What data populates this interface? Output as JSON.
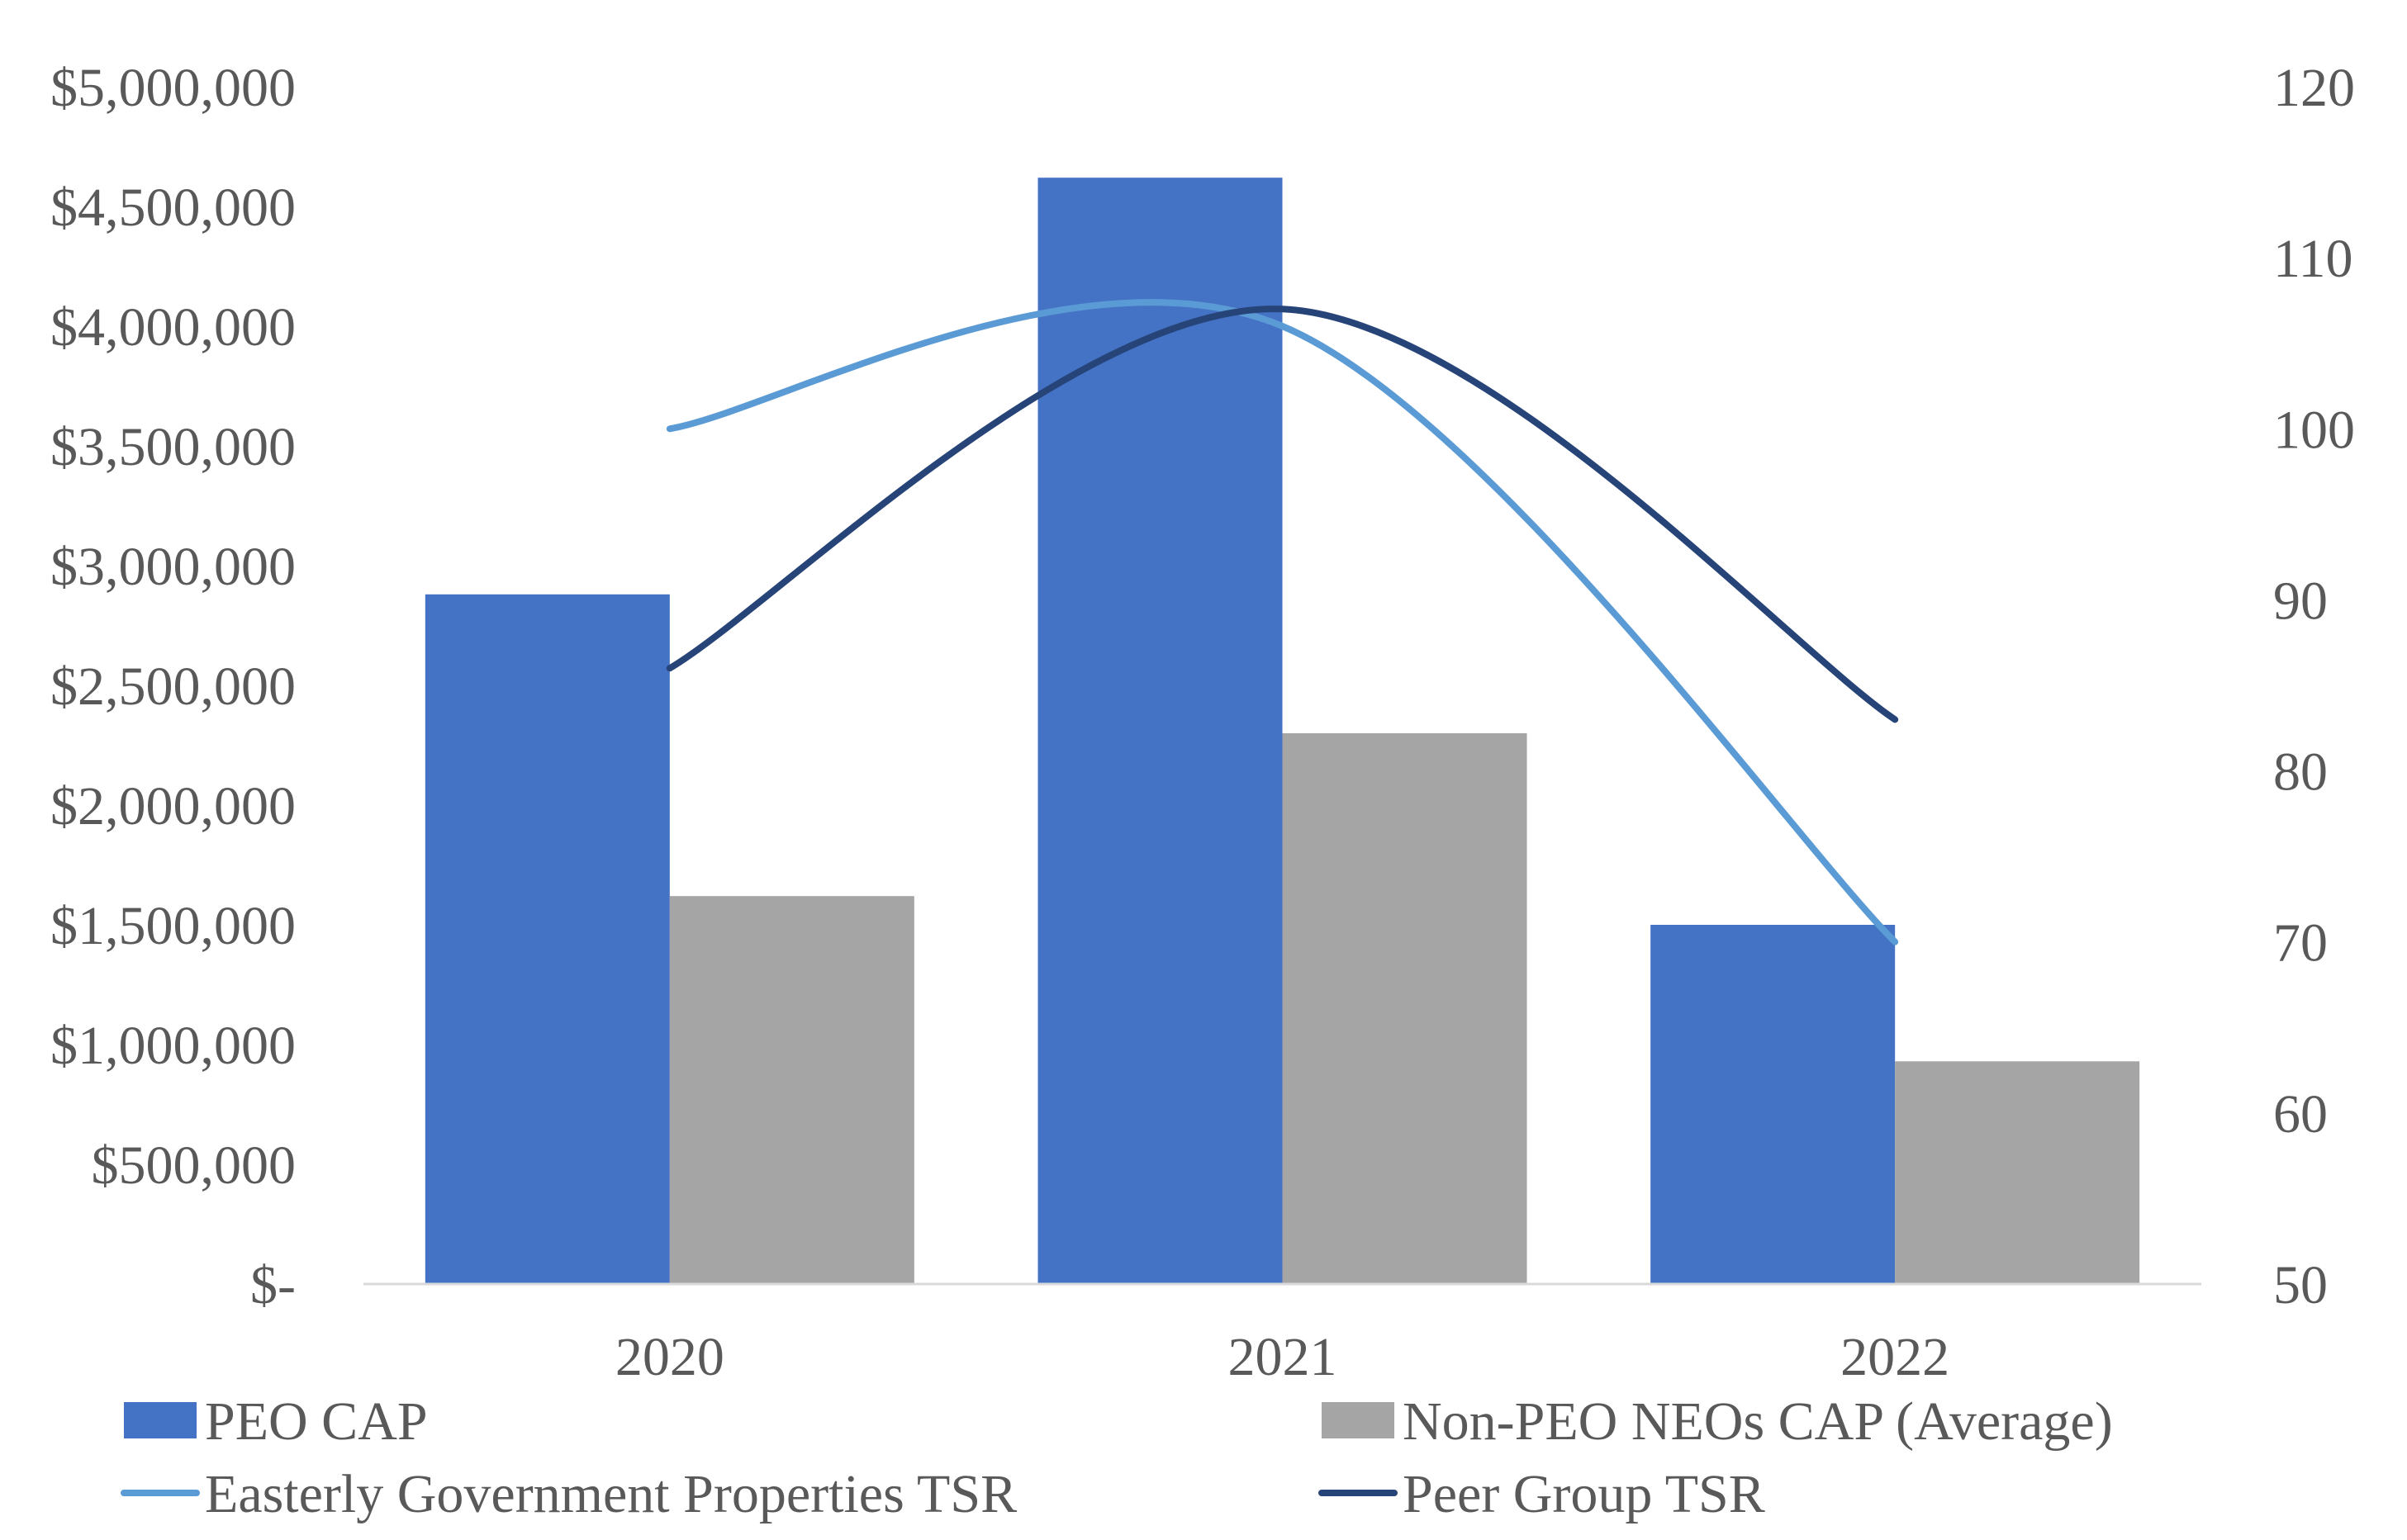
{
  "chart_data": {
    "type": "bar",
    "categories": [
      "2020",
      "2021",
      "2022"
    ],
    "series": [
      {
        "name": "PEO CAP",
        "kind": "bar",
        "axis": "left",
        "color": "#4472C4",
        "values": [
          2880000,
          4620000,
          1500000
        ]
      },
      {
        "name": "Non-PEO NEOs CAP (Average)",
        "kind": "bar",
        "axis": "left",
        "color": "#A5A5A5",
        "values": [
          1620000,
          2300000,
          930000
        ]
      },
      {
        "name": "Easterly Government Properties TSR",
        "kind": "line",
        "axis": "right",
        "color": "#5B9BD5",
        "values": [
          100,
          106,
          70
        ]
      },
      {
        "name": "Peer Group TSR",
        "kind": "line",
        "axis": "right",
        "color": "#264478",
        "values": [
          86,
          107,
          83
        ]
      }
    ],
    "left_axis": {
      "ylim": [
        0,
        5000000
      ],
      "ticks": [
        0,
        500000,
        1000000,
        1500000,
        2000000,
        2500000,
        3000000,
        3500000,
        4000000,
        4500000,
        5000000
      ],
      "tick_labels": [
        "$-",
        "$500,000",
        "$1,000,000",
        "$1,500,000",
        "$2,000,000",
        "$2,500,000",
        "$3,000,000",
        "$3,500,000",
        "$4,000,000",
        "$4,500,000",
        "$5,000,000"
      ]
    },
    "right_axis": {
      "ylim": [
        50,
        120
      ],
      "ticks": [
        50,
        60,
        70,
        80,
        90,
        100,
        110,
        120
      ],
      "tick_labels": [
        "50",
        "60",
        "70",
        "80",
        "90",
        "100",
        "110",
        "120"
      ]
    },
    "title": "",
    "xlabel": "",
    "ylabel": "",
    "grid": false,
    "legend_position": "bottom"
  }
}
